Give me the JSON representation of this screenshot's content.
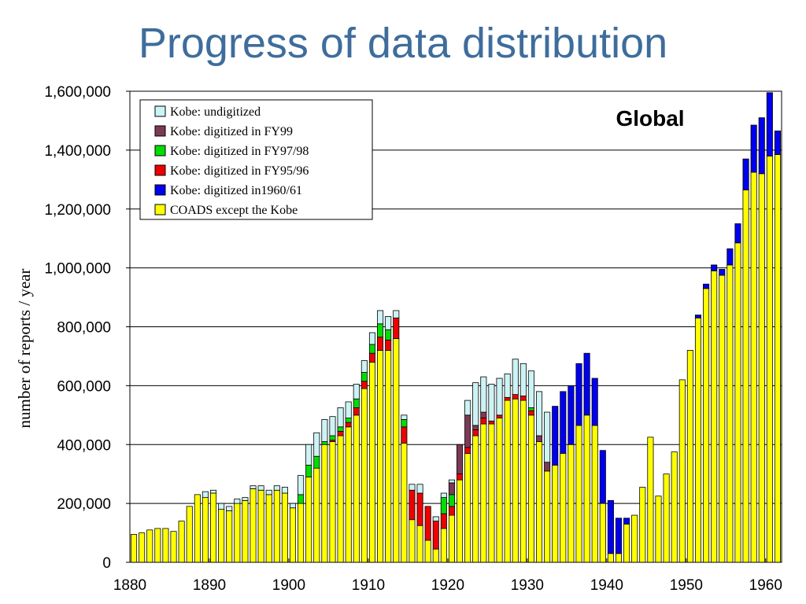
{
  "title": "Progress of data distribution",
  "chart_data": {
    "type": "bar",
    "stacked": true,
    "panel_label": "Global",
    "ylabel": "number of reports / year",
    "xlabel": "",
    "ylim": [
      0,
      1600000
    ],
    "yticks": [
      0,
      200000,
      400000,
      600000,
      800000,
      1000000,
      1200000,
      1400000,
      1600000
    ],
    "ytick_labels": [
      "0",
      "200,000",
      "400,000",
      "600,000",
      "800,000",
      "1,000,000",
      "1,200,000",
      "1,400,000",
      "1,600,000"
    ],
    "xticks": [
      1880,
      1890,
      1900,
      1910,
      1920,
      1930,
      1940,
      1950,
      1960
    ],
    "xtick_labels": [
      "1880",
      "1890",
      "1900",
      "1910",
      "1920",
      "1930",
      "1940",
      "1950",
      "1960"
    ],
    "grid": true,
    "legend_position": "top-left",
    "categories": [
      1880,
      1881,
      1882,
      1883,
      1884,
      1885,
      1886,
      1887,
      1888,
      1889,
      1890,
      1891,
      1892,
      1893,
      1894,
      1895,
      1896,
      1897,
      1898,
      1899,
      1900,
      1901,
      1902,
      1903,
      1904,
      1905,
      1906,
      1907,
      1908,
      1909,
      1910,
      1911,
      1912,
      1913,
      1914,
      1915,
      1916,
      1917,
      1918,
      1919,
      1920,
      1921,
      1922,
      1923,
      1924,
      1925,
      1926,
      1927,
      1928,
      1929,
      1930,
      1931,
      1932,
      1933,
      1934,
      1935,
      1936,
      1937,
      1938,
      1939,
      1940,
      1941,
      1942,
      1943,
      1944,
      1945,
      1946,
      1947,
      1948,
      1949,
      1950,
      1951,
      1952,
      1953,
      1954,
      1955,
      1956,
      1957,
      1958,
      1959,
      1960,
      1961
    ],
    "series": [
      {
        "name": "COADS except the Kobe",
        "color": "#ffff00",
        "values": [
          95000,
          100000,
          110000,
          115000,
          115000,
          105000,
          140000,
          190000,
          230000,
          220000,
          235000,
          180000,
          175000,
          200000,
          210000,
          250000,
          245000,
          230000,
          245000,
          235000,
          185000,
          200000,
          290000,
          320000,
          400000,
          410000,
          430000,
          460000,
          500000,
          590000,
          680000,
          720000,
          720000,
          760000,
          405000,
          145000,
          125000,
          75000,
          45000,
          115000,
          160000,
          280000,
          370000,
          430000,
          470000,
          470000,
          490000,
          550000,
          555000,
          550000,
          500000,
          410000,
          310000,
          330000,
          370000,
          400000,
          465000,
          500000,
          465000,
          200000,
          30000,
          30000,
          130000,
          160000,
          255000,
          425000,
          225000,
          300000,
          375000,
          620000,
          720000,
          830000,
          930000,
          990000,
          975000,
          1010000,
          1085000,
          1265000,
          1325000,
          1320000,
          1380000,
          1385000
        ]
      },
      {
        "name": "Kobe: digitized in1960/61",
        "color": "#0000ee",
        "values": [
          0,
          0,
          0,
          0,
          0,
          0,
          0,
          0,
          0,
          0,
          0,
          0,
          0,
          0,
          0,
          0,
          0,
          0,
          0,
          0,
          0,
          0,
          0,
          0,
          0,
          0,
          0,
          0,
          0,
          0,
          0,
          0,
          0,
          0,
          0,
          0,
          0,
          0,
          0,
          0,
          0,
          0,
          0,
          0,
          0,
          0,
          0,
          0,
          0,
          0,
          0,
          0,
          0,
          200000,
          210000,
          200000,
          210000,
          210000,
          160000,
          180000,
          180000,
          120000,
          20000,
          0,
          0,
          0,
          0,
          0,
          0,
          0,
          0,
          10000,
          15000,
          20000,
          20000,
          55000,
          65000,
          105000,
          160000,
          190000,
          215000,
          80000
        ]
      },
      {
        "name": "Kobe: digitized in FY95/96",
        "color": "#ee0000",
        "values": [
          0,
          0,
          0,
          0,
          0,
          0,
          0,
          0,
          0,
          0,
          0,
          0,
          0,
          0,
          0,
          0,
          0,
          0,
          0,
          0,
          0,
          0,
          0,
          0,
          0,
          5000,
          15000,
          15000,
          25000,
          25000,
          30000,
          45000,
          35000,
          70000,
          55000,
          100000,
          110000,
          115000,
          95000,
          50000,
          30000,
          20000,
          20000,
          20000,
          20000,
          10000,
          10000,
          10000,
          15000,
          15000,
          15000,
          0,
          0,
          0,
          0,
          0,
          0,
          0,
          0,
          0,
          0,
          0,
          0,
          0,
          0,
          0,
          0,
          0,
          0,
          0,
          0,
          0,
          0,
          0,
          0,
          0,
          0,
          0,
          0,
          0,
          0,
          0
        ]
      },
      {
        "name": "Kobe: digitized in FY97/98",
        "color": "#00dd00",
        "values": [
          0,
          0,
          0,
          0,
          0,
          0,
          0,
          0,
          0,
          0,
          0,
          0,
          0,
          0,
          0,
          0,
          0,
          0,
          0,
          0,
          0,
          30000,
          40000,
          40000,
          10000,
          15000,
          15000,
          15000,
          30000,
          30000,
          30000,
          45000,
          35000,
          0,
          25000,
          0,
          0,
          0,
          0,
          55000,
          40000,
          0,
          0,
          0,
          0,
          0,
          0,
          0,
          0,
          0,
          10000,
          0,
          0,
          0,
          0,
          0,
          0,
          0,
          0,
          0,
          0,
          0,
          0,
          0,
          0,
          0,
          0,
          0,
          0,
          0,
          0,
          0,
          0,
          0,
          0,
          0,
          0,
          0,
          0,
          0,
          0,
          0
        ]
      },
      {
        "name": "Kobe: digitized in FY99",
        "color": "#7b3a55",
        "values": [
          0,
          0,
          0,
          0,
          0,
          0,
          0,
          0,
          0,
          0,
          0,
          0,
          0,
          0,
          0,
          0,
          0,
          0,
          0,
          0,
          0,
          0,
          0,
          0,
          0,
          0,
          0,
          0,
          0,
          0,
          0,
          0,
          0,
          0,
          0,
          0,
          0,
          0,
          0,
          0,
          40000,
          100000,
          110000,
          15000,
          20000,
          0,
          0,
          0,
          0,
          0,
          0,
          20000,
          30000,
          0,
          0,
          0,
          0,
          0,
          0,
          0,
          0,
          0,
          0,
          0,
          0,
          0,
          0,
          0,
          0,
          0,
          0,
          0,
          0,
          0,
          0,
          0,
          0,
          0,
          0,
          0,
          0,
          0
        ]
      },
      {
        "name": "Kobe: undigitized",
        "color": "#ccf3f5",
        "values": [
          0,
          0,
          0,
          0,
          0,
          0,
          0,
          0,
          0,
          20000,
          10000,
          20000,
          15000,
          15000,
          10000,
          10000,
          15000,
          15000,
          15000,
          20000,
          15000,
          65000,
          70000,
          80000,
          75000,
          65000,
          65000,
          55000,
          50000,
          40000,
          40000,
          45000,
          45000,
          25000,
          15000,
          20000,
          30000,
          0,
          15000,
          15000,
          10000,
          0,
          50000,
          145000,
          120000,
          125000,
          125000,
          80000,
          120000,
          110000,
          125000,
          150000,
          170000,
          0,
          0,
          0,
          0,
          0,
          0,
          0,
          0,
          0,
          0,
          0,
          0,
          0,
          0,
          0,
          0,
          0,
          0,
          0,
          0,
          0,
          0,
          0,
          0,
          0,
          0,
          0,
          0,
          0
        ]
      }
    ],
    "legend_order": [
      "Kobe: undigitized",
      "Kobe: digitized in FY99",
      "Kobe: digitized in FY97/98",
      "Kobe: digitized in FY95/96",
      "Kobe: digitized in1960/61",
      "COADS except the Kobe"
    ]
  }
}
